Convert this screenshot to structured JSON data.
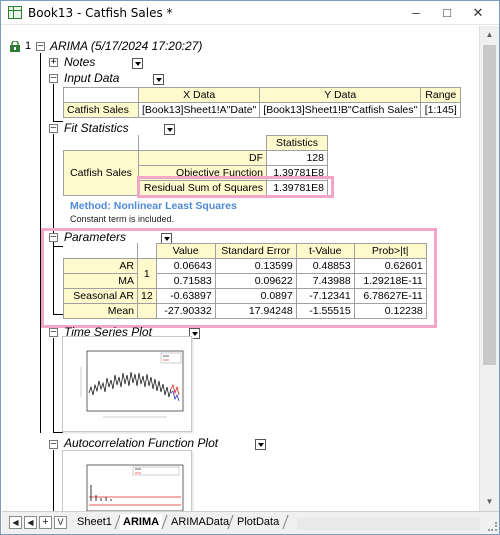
{
  "window": {
    "title": "Book13 - Catfish Sales *"
  },
  "header": {
    "row_number": "1",
    "title": "ARIMA (5/17/2024 17:20:27)"
  },
  "notes": {
    "title": "Notes"
  },
  "input_data": {
    "title": "Input Data",
    "columns": [
      "X Data",
      "Y Data",
      "Range"
    ],
    "row": {
      "label": "Catfish Sales",
      "x": "[Book13]Sheet1!A\"Date\"",
      "y": "[Book13]Sheet1!B\"Catfish Sales\"",
      "range": "[1:145]"
    }
  },
  "fit_statistics": {
    "title": "Fit Statistics",
    "column": "Statistics",
    "row_label": "Catfish Sales",
    "rows": [
      {
        "label": "DF",
        "value": "128"
      },
      {
        "label": "Objective Function",
        "value": "1.39781E8"
      },
      {
        "label": "Residual Sum of Squares",
        "value": "1.39781E8"
      }
    ],
    "method": "Method: Nonlinear Least Squares",
    "note": "Constant term is included."
  },
  "parameters": {
    "title": "Parameters",
    "columns": [
      "Value",
      "Standard Error",
      "t-Value",
      "Prob>|t|"
    ],
    "rows": [
      {
        "label": "AR",
        "lag": "1",
        "value": "0.06643",
        "se": "0.13599",
        "t": "0.48853",
        "p": "0.62601"
      },
      {
        "label": "MA",
        "lag": "",
        "value": "0.71583",
        "se": "0.09622",
        "t": "7.43988",
        "p": "1.29218E-11"
      },
      {
        "label": "Seasonal AR",
        "lag": "12",
        "value": "-0.63897",
        "se": "0.0897",
        "t": "-7.12341",
        "p": "6.78627E-11"
      },
      {
        "label": "Mean",
        "lag": "",
        "value": "-27.90332",
        "se": "17.94248",
        "t": "-1.55515",
        "p": "0.12238"
      }
    ]
  },
  "time_series_plot": {
    "title": "Time Series Plot"
  },
  "acf_plot": {
    "title": "Autocorrelation Function Plot"
  },
  "sheet_tabs": [
    "Sheet1",
    "ARIMA",
    "ARIMAData",
    "PlotData"
  ],
  "active_tab": "ARIMA",
  "colors": {
    "highlight": "#f4a6c8",
    "header_fill": "#fffacd",
    "method_text": "#4f8ad4"
  }
}
